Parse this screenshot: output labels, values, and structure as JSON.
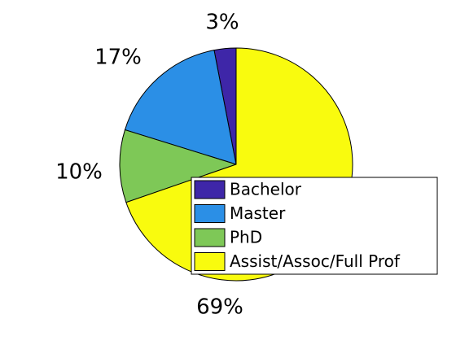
{
  "chart_data": {
    "type": "pie",
    "categories": [
      "Bachelor",
      "Master",
      "PhD",
      "Assist/Assoc/Full Prof"
    ],
    "values": [
      3,
      17,
      10,
      69
    ],
    "value_labels": [
      "3%",
      "17%",
      "10%",
      "69%"
    ],
    "colors": [
      "#3e26a8",
      "#2b8fe6",
      "#7ec857",
      "#f9fb0e"
    ],
    "legend": "lower right"
  }
}
